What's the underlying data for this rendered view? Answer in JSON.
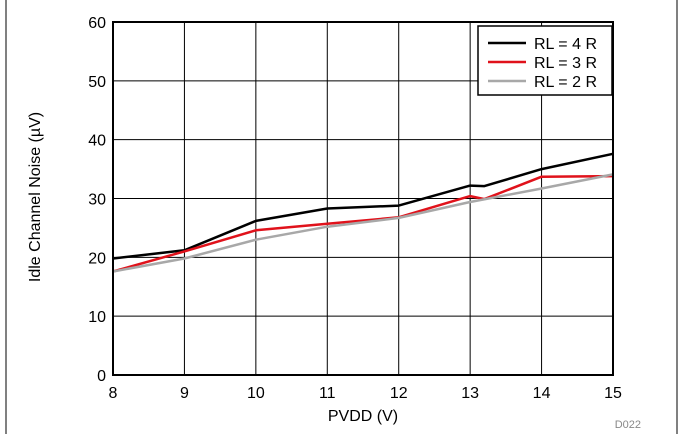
{
  "chart_data": {
    "type": "line",
    "xlabel": "PVDD (V)",
    "ylabel": "Idle Channel Noise (µV)",
    "xlim": [
      8,
      15
    ],
    "ylim": [
      0,
      60
    ],
    "xticks": [
      8,
      9,
      10,
      11,
      12,
      13,
      14,
      15
    ],
    "yticks": [
      0,
      10,
      20,
      30,
      40,
      50,
      60
    ],
    "grid": true,
    "legend_position": "top-right",
    "figure_id": "D022",
    "series": [
      {
        "name": "RL = 4 R",
        "color": "#000000",
        "points": [
          [
            8,
            19.8
          ],
          [
            9,
            21.2
          ],
          [
            10,
            26.2
          ],
          [
            11,
            28.3
          ],
          [
            12,
            28.8
          ],
          [
            13,
            32.2
          ],
          [
            13.2,
            32.1
          ],
          [
            14,
            35.0
          ],
          [
            15,
            37.6
          ]
        ]
      },
      {
        "name": "RL = 3 R",
        "color": "#e0121b",
        "points": [
          [
            8,
            17.6
          ],
          [
            9,
            21.0
          ],
          [
            10,
            24.6
          ],
          [
            11,
            25.7
          ],
          [
            12,
            26.8
          ],
          [
            13,
            30.4
          ],
          [
            13.2,
            29.9
          ],
          [
            14,
            33.7
          ],
          [
            15,
            33.8
          ]
        ]
      },
      {
        "name": "RL = 2 R",
        "color": "#a8a8a8",
        "points": [
          [
            8,
            17.6
          ],
          [
            9,
            19.8
          ],
          [
            10,
            23.0
          ],
          [
            11,
            25.2
          ],
          [
            12,
            26.7
          ],
          [
            13,
            29.4
          ],
          [
            14,
            31.7
          ],
          [
            15,
            34.1
          ]
        ]
      }
    ]
  }
}
